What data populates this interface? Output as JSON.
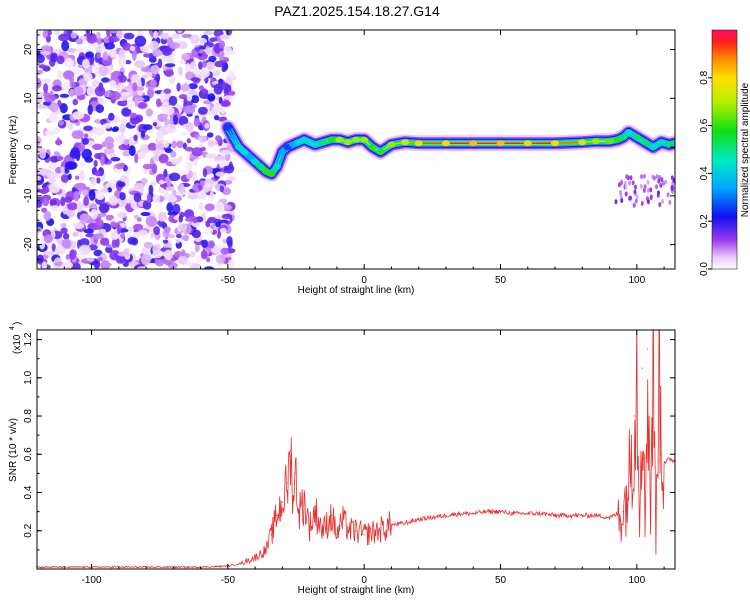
{
  "title": "PAZ1.2025.154.18.27.G14",
  "chart_data": [
    {
      "type": "heatmap",
      "title": "PAZ1.2025.154.18.27.G14",
      "xlabel": "Height of straight line (km)",
      "ylabel": "Frequency (Hz)",
      "xlim": [
        -120,
        114
      ],
      "ylim": [
        -25,
        24
      ],
      "xticks": [
        -100,
        -50,
        0,
        50,
        100
      ],
      "yticks": [
        20,
        10,
        0,
        -10,
        -20
      ],
      "noise_region_x": [
        -120,
        -50
      ],
      "ridge": {
        "x": [
          -50,
          -48,
          -46,
          -44,
          -42,
          -40,
          -38,
          -36,
          -34,
          -32,
          -30,
          -28,
          -26,
          -24,
          -22,
          -20,
          -18,
          -15,
          -12,
          -9,
          -6,
          -3,
          0,
          3,
          6,
          10,
          15,
          20,
          30,
          40,
          50,
          60,
          70,
          80,
          85,
          90,
          93,
          95,
          97,
          100,
          103,
          106,
          109,
          112,
          114
        ],
        "y": [
          4,
          2,
          0,
          -1,
          -2,
          -3,
          -4,
          -5,
          -5.5,
          -4,
          -1,
          0,
          0.5,
          1,
          1.5,
          1,
          0.5,
          1,
          1.5,
          1.5,
          1,
          1.5,
          1.5,
          0,
          -1,
          0.5,
          1,
          0.8,
          0.8,
          0.8,
          0.8,
          0.8,
          0.8,
          1,
          1.2,
          1.2,
          1.5,
          2,
          3,
          2,
          1,
          0,
          1,
          0.5,
          0.8
        ],
        "amplitude": [
          0.3,
          0.4,
          0.5,
          0.5,
          0.4,
          0.5,
          0.6,
          0.7,
          0.7,
          0.5,
          0.4,
          0.3,
          0.4,
          0.5,
          0.5,
          0.5,
          0.5,
          0.6,
          0.7,
          0.8,
          0.8,
          0.8,
          0.8,
          0.7,
          0.7,
          0.8,
          0.85,
          0.9,
          0.95,
          0.98,
          0.98,
          0.95,
          0.95,
          0.85,
          0.8,
          0.75,
          0.7,
          0.6,
          0.5,
          0.6,
          0.6,
          0.5,
          0.5,
          0.6,
          0.6
        ]
      },
      "colorbar": {
        "label": "Normalized spectral amplitude",
        "ticks": [
          0.0,
          0.2,
          0.4,
          0.6,
          0.8
        ],
        "range": [
          0,
          1
        ]
      }
    },
    {
      "type": "line",
      "xlabel": "Height of straight line (km)",
      "ylabel": "SNR (10 * v/v)",
      "multiplier_label": "(x10",
      "multiplier_exp": "4",
      "xlim": [
        -120,
        114
      ],
      "ylim": [
        0,
        1.25
      ],
      "xticks": [
        -100,
        -50,
        0,
        50,
        100
      ],
      "yticks": [
        0.2,
        0.4,
        0.6,
        0.8,
        1.0,
        1.2
      ],
      "color": "#e8312f",
      "x": [
        -120,
        -60,
        -50,
        -45,
        -40,
        -36,
        -34,
        -32,
        -30,
        -28,
        -27,
        -26,
        -25,
        -24,
        -22,
        -20,
        -18,
        -15,
        -12,
        -10,
        -8,
        -5,
        -3,
        0,
        5,
        10,
        15,
        20,
        25,
        30,
        35,
        40,
        45,
        50,
        55,
        60,
        65,
        70,
        75,
        80,
        85,
        90,
        95,
        97,
        99,
        100,
        101,
        102,
        103,
        104,
        105,
        106,
        107,
        108,
        109,
        110,
        112,
        114
      ],
      "y": [
        0.01,
        0.01,
        0.015,
        0.03,
        0.06,
        0.1,
        0.18,
        0.28,
        0.35,
        0.45,
        0.62,
        0.38,
        0.5,
        0.3,
        0.35,
        0.22,
        0.3,
        0.2,
        0.28,
        0.18,
        0.25,
        0.2,
        0.2,
        0.18,
        0.2,
        0.23,
        0.24,
        0.26,
        0.27,
        0.28,
        0.29,
        0.29,
        0.3,
        0.3,
        0.29,
        0.29,
        0.29,
        0.28,
        0.28,
        0.28,
        0.28,
        0.27,
        0.3,
        0.45,
        0.8,
        1.08,
        0.3,
        1.05,
        0.2,
        1.15,
        0.25,
        1.16,
        0.1,
        1.25,
        0.6,
        0.56,
        0.57,
        0.57
      ]
    }
  ]
}
